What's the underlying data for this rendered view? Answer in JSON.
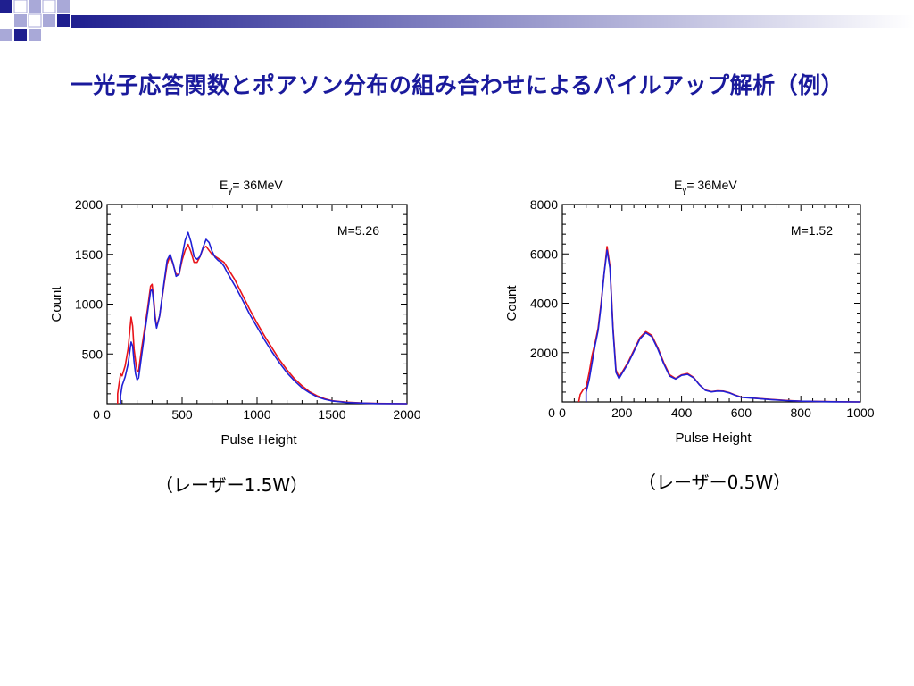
{
  "slide": {
    "title": "一光子応答関数とポアソン分布の組み合わせによるパイルアップ解析（例）",
    "colors": {
      "title": "#1a1a9c",
      "deco_dark": "#1f1f8f",
      "deco_light": "#a9a9d8"
    }
  },
  "captions": {
    "left": "（レーザー1.5W）",
    "right": "（レーザー0.5W）"
  },
  "chart_data": [
    {
      "type": "line",
      "title_main": "E",
      "title_sub": "γ",
      "title_rest": "= 36MeV",
      "annotation": "M=5.26",
      "xlabel": "Pulse Height",
      "ylabel": "Count",
      "xlim": [
        0,
        2000
      ],
      "ylim": [
        0,
        2000
      ],
      "xticks": [
        0,
        500,
        1000,
        1500,
        2000
      ],
      "yticks": [
        500,
        1000,
        1500,
        2000
      ],
      "series": [
        {
          "color": "#e8141a",
          "points": [
            [
              70,
              0
            ],
            [
              70,
              100
            ],
            [
              80,
              200
            ],
            [
              90,
              300
            ],
            [
              100,
              280
            ],
            [
              120,
              380
            ],
            [
              140,
              550
            ],
            [
              160,
              870
            ],
            [
              170,
              780
            ],
            [
              180,
              550
            ],
            [
              190,
              430
            ],
            [
              200,
              330
            ],
            [
              210,
              330
            ],
            [
              230,
              550
            ],
            [
              250,
              750
            ],
            [
              270,
              960
            ],
            [
              290,
              1180
            ],
            [
              300,
              1200
            ],
            [
              310,
              1060
            ],
            [
              320,
              880
            ],
            [
              330,
              770
            ],
            [
              350,
              880
            ],
            [
              380,
              1200
            ],
            [
              400,
              1400
            ],
            [
              420,
              1490
            ],
            [
              440,
              1400
            ],
            [
              460,
              1300
            ],
            [
              480,
              1300
            ],
            [
              500,
              1440
            ],
            [
              520,
              1540
            ],
            [
              540,
              1600
            ],
            [
              560,
              1520
            ],
            [
              580,
              1420
            ],
            [
              600,
              1420
            ],
            [
              620,
              1480
            ],
            [
              640,
              1560
            ],
            [
              660,
              1580
            ],
            [
              680,
              1540
            ],
            [
              700,
              1500
            ],
            [
              720,
              1480
            ],
            [
              740,
              1460
            ],
            [
              760,
              1440
            ],
            [
              780,
              1420
            ],
            [
              800,
              1370
            ],
            [
              850,
              1250
            ],
            [
              900,
              1100
            ],
            [
              950,
              950
            ],
            [
              1000,
              810
            ],
            [
              1050,
              680
            ],
            [
              1100,
              560
            ],
            [
              1150,
              440
            ],
            [
              1200,
              340
            ],
            [
              1250,
              250
            ],
            [
              1300,
              180
            ],
            [
              1350,
              120
            ],
            [
              1400,
              80
            ],
            [
              1450,
              50
            ],
            [
              1500,
              30
            ],
            [
              1600,
              15
            ],
            [
              1700,
              7
            ],
            [
              1800,
              3
            ],
            [
              2000,
              0
            ]
          ]
        },
        {
          "color": "#2020d6",
          "points": [
            [
              90,
              0
            ],
            [
              90,
              80
            ],
            [
              100,
              180
            ],
            [
              120,
              270
            ],
            [
              140,
              400
            ],
            [
              160,
              620
            ],
            [
              170,
              580
            ],
            [
              180,
              420
            ],
            [
              190,
              300
            ],
            [
              200,
              240
            ],
            [
              210,
              260
            ],
            [
              230,
              480
            ],
            [
              250,
              700
            ],
            [
              270,
              920
            ],
            [
              290,
              1130
            ],
            [
              300,
              1150
            ],
            [
              310,
              1020
            ],
            [
              320,
              850
            ],
            [
              330,
              760
            ],
            [
              350,
              880
            ],
            [
              380,
              1220
            ],
            [
              400,
              1440
            ],
            [
              420,
              1500
            ],
            [
              440,
              1410
            ],
            [
              460,
              1280
            ],
            [
              480,
              1300
            ],
            [
              500,
              1480
            ],
            [
              520,
              1640
            ],
            [
              540,
              1720
            ],
            [
              560,
              1620
            ],
            [
              580,
              1480
            ],
            [
              600,
              1450
            ],
            [
              620,
              1480
            ],
            [
              640,
              1570
            ],
            [
              660,
              1650
            ],
            [
              680,
              1620
            ],
            [
              700,
              1530
            ],
            [
              720,
              1470
            ],
            [
              740,
              1440
            ],
            [
              760,
              1420
            ],
            [
              780,
              1380
            ],
            [
              800,
              1320
            ],
            [
              850,
              1190
            ],
            [
              900,
              1050
            ],
            [
              950,
              900
            ],
            [
              1000,
              770
            ],
            [
              1050,
              640
            ],
            [
              1100,
              520
            ],
            [
              1150,
              410
            ],
            [
              1200,
              310
            ],
            [
              1250,
              230
            ],
            [
              1300,
              160
            ],
            [
              1350,
              110
            ],
            [
              1400,
              70
            ],
            [
              1450,
              45
            ],
            [
              1500,
              28
            ],
            [
              1600,
              12
            ],
            [
              1700,
              6
            ],
            [
              1800,
              2
            ],
            [
              2000,
              0
            ]
          ]
        }
      ]
    },
    {
      "type": "line",
      "title_main": "E",
      "title_sub": "γ",
      "title_rest": "= 36MeV",
      "annotation": "M=1.52",
      "xlabel": "Pulse Height",
      "ylabel": "Count",
      "xlim": [
        0,
        1000
      ],
      "ylim": [
        0,
        8000
      ],
      "xticks": [
        0,
        200,
        400,
        600,
        800,
        1000
      ],
      "yticks": [
        2000,
        4000,
        6000,
        8000
      ],
      "series": [
        {
          "color": "#e8141a",
          "points": [
            [
              55,
              0
            ],
            [
              60,
              300
            ],
            [
              70,
              500
            ],
            [
              80,
              600
            ],
            [
              90,
              1200
            ],
            [
              100,
              1900
            ],
            [
              110,
              2400
            ],
            [
              120,
              3000
            ],
            [
              130,
              4000
            ],
            [
              140,
              5200
            ],
            [
              150,
              6300
            ],
            [
              160,
              5500
            ],
            [
              170,
              3000
            ],
            [
              180,
              1300
            ],
            [
              190,
              1000
            ],
            [
              200,
              1200
            ],
            [
              220,
              1600
            ],
            [
              240,
              2100
            ],
            [
              260,
              2600
            ],
            [
              280,
              2850
            ],
            [
              300,
              2700
            ],
            [
              320,
              2200
            ],
            [
              340,
              1600
            ],
            [
              360,
              1100
            ],
            [
              380,
              950
            ],
            [
              400,
              1100
            ],
            [
              420,
              1150
            ],
            [
              440,
              1000
            ],
            [
              460,
              700
            ],
            [
              480,
              480
            ],
            [
              500,
              420
            ],
            [
              520,
              450
            ],
            [
              540,
              440
            ],
            [
              560,
              380
            ],
            [
              580,
              280
            ],
            [
              600,
              200
            ],
            [
              650,
              150
            ],
            [
              700,
              100
            ],
            [
              750,
              60
            ],
            [
              800,
              30
            ],
            [
              900,
              10
            ],
            [
              1000,
              0
            ]
          ]
        },
        {
          "color": "#2020d6",
          "points": [
            [
              80,
              0
            ],
            [
              80,
              400
            ],
            [
              90,
              900
            ],
            [
              100,
              1600
            ],
            [
              110,
              2300
            ],
            [
              120,
              2900
            ],
            [
              130,
              3900
            ],
            [
              140,
              5200
            ],
            [
              150,
              6150
            ],
            [
              160,
              5400
            ],
            [
              170,
              2900
            ],
            [
              180,
              1200
            ],
            [
              190,
              950
            ],
            [
              200,
              1150
            ],
            [
              220,
              1550
            ],
            [
              240,
              2050
            ],
            [
              260,
              2550
            ],
            [
              280,
              2800
            ],
            [
              300,
              2650
            ],
            [
              320,
              2150
            ],
            [
              340,
              1550
            ],
            [
              360,
              1050
            ],
            [
              380,
              930
            ],
            [
              400,
              1080
            ],
            [
              420,
              1120
            ],
            [
              440,
              980
            ],
            [
              460,
              690
            ],
            [
              480,
              470
            ],
            [
              500,
              410
            ],
            [
              520,
              440
            ],
            [
              540,
              430
            ],
            [
              560,
              370
            ],
            [
              580,
              270
            ],
            [
              600,
              190
            ],
            [
              650,
              140
            ],
            [
              700,
              95
            ],
            [
              750,
              55
            ],
            [
              800,
              28
            ],
            [
              900,
              9
            ],
            [
              1000,
              0
            ]
          ]
        }
      ]
    }
  ]
}
